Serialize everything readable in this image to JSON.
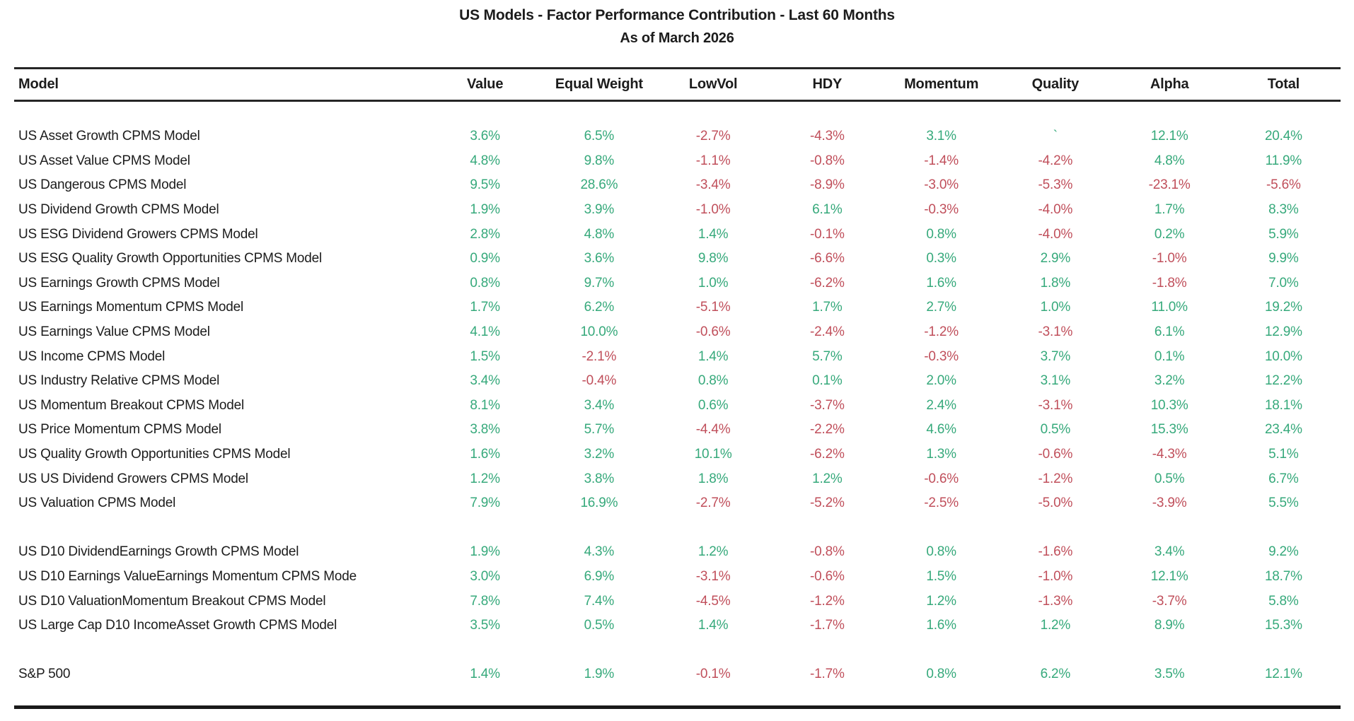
{
  "title": "US Models - Factor Performance Contribution - Last 60 Months",
  "subtitle": "As of March 2026",
  "colors": {
    "positive": "#36A97B",
    "negative": "#C04F5B",
    "text": "#1c1c1c",
    "rule": "#262626"
  },
  "table": {
    "columns": [
      "Model",
      "Value",
      "Equal Weight",
      "LowVol",
      "HDY",
      "Momentum",
      "Quality",
      "Alpha",
      "Total"
    ],
    "groups": [
      {
        "rows": [
          {
            "model": "US Asset Growth CPMS Model",
            "values": [
              "3.6%",
              "6.5%",
              "-2.7%",
              "-4.3%",
              "3.1%",
              "`",
              "12.1%",
              "20.4%"
            ]
          },
          {
            "model": "US Asset Value CPMS Model",
            "values": [
              "4.8%",
              "9.8%",
              "-1.1%",
              "-0.8%",
              "-1.4%",
              "-4.2%",
              "4.8%",
              "11.9%"
            ]
          },
          {
            "model": "US Dangerous CPMS Model",
            "values": [
              "9.5%",
              "28.6%",
              "-3.4%",
              "-8.9%",
              "-3.0%",
              "-5.3%",
              "-23.1%",
              "-5.6%"
            ]
          },
          {
            "model": "US Dividend Growth CPMS Model",
            "values": [
              "1.9%",
              "3.9%",
              "-1.0%",
              "6.1%",
              "-0.3%",
              "-4.0%",
              "1.7%",
              "8.3%"
            ]
          },
          {
            "model": "US ESG Dividend Growers CPMS Model",
            "values": [
              "2.8%",
              "4.8%",
              "1.4%",
              "-0.1%",
              "0.8%",
              "-4.0%",
              "0.2%",
              "5.9%"
            ]
          },
          {
            "model": "US ESG Quality Growth Opportunities CPMS Model",
            "values": [
              "0.9%",
              "3.6%",
              "9.8%",
              "-6.6%",
              "0.3%",
              "2.9%",
              "-1.0%",
              "9.9%"
            ]
          },
          {
            "model": "US Earnings Growth CPMS Model",
            "values": [
              "0.8%",
              "9.7%",
              "1.0%",
              "-6.2%",
              "1.6%",
              "1.8%",
              "-1.8%",
              "7.0%"
            ]
          },
          {
            "model": "US Earnings Momentum CPMS Model",
            "values": [
              "1.7%",
              "6.2%",
              "-5.1%",
              "1.7%",
              "2.7%",
              "1.0%",
              "11.0%",
              "19.2%"
            ]
          },
          {
            "model": "US Earnings Value CPMS Model",
            "values": [
              "4.1%",
              "10.0%",
              "-0.6%",
              "-2.4%",
              "-1.2%",
              "-3.1%",
              "6.1%",
              "12.9%"
            ]
          },
          {
            "model": "US Income CPMS Model",
            "values": [
              "1.5%",
              "-2.1%",
              "1.4%",
              "5.7%",
              "-0.3%",
              "3.7%",
              "0.1%",
              "10.0%"
            ]
          },
          {
            "model": "US Industry Relative CPMS Model",
            "values": [
              "3.4%",
              "-0.4%",
              "0.8%",
              "0.1%",
              "2.0%",
              "3.1%",
              "3.2%",
              "12.2%"
            ]
          },
          {
            "model": "US Momentum Breakout CPMS Model",
            "values": [
              "8.1%",
              "3.4%",
              "0.6%",
              "-3.7%",
              "2.4%",
              "-3.1%",
              "10.3%",
              "18.1%"
            ]
          },
          {
            "model": "US Price Momentum CPMS Model",
            "values": [
              "3.8%",
              "5.7%",
              "-4.4%",
              "-2.2%",
              "4.6%",
              "0.5%",
              "15.3%",
              "23.4%"
            ]
          },
          {
            "model": "US Quality Growth Opportunities CPMS Model",
            "values": [
              "1.6%",
              "3.2%",
              "10.1%",
              "-6.2%",
              "1.3%",
              "-0.6%",
              "-4.3%",
              "5.1%"
            ]
          },
          {
            "model": "US US Dividend Growers CPMS Model",
            "values": [
              "1.2%",
              "3.8%",
              "1.8%",
              "1.2%",
              "-0.6%",
              "-1.2%",
              "0.5%",
              "6.7%"
            ]
          },
          {
            "model": "US Valuation CPMS Model",
            "values": [
              "7.9%",
              "16.9%",
              "-2.7%",
              "-5.2%",
              "-2.5%",
              "-5.0%",
              "-3.9%",
              "5.5%"
            ]
          }
        ]
      },
      {
        "rows": [
          {
            "model": "US D10 DividendEarnings Growth CPMS Model",
            "values": [
              "1.9%",
              "4.3%",
              "1.2%",
              "-0.8%",
              "0.8%",
              "-1.6%",
              "3.4%",
              "9.2%"
            ]
          },
          {
            "model": "US D10 Earnings ValueEarnings Momentum CPMS Mode",
            "values": [
              "3.0%",
              "6.9%",
              "-3.1%",
              "-0.6%",
              "1.5%",
              "-1.0%",
              "12.1%",
              "18.7%"
            ]
          },
          {
            "model": "US D10 ValuationMomentum Breakout CPMS Model",
            "values": [
              "7.8%",
              "7.4%",
              "-4.5%",
              "-1.2%",
              "1.2%",
              "-1.3%",
              "-3.7%",
              "5.8%"
            ]
          },
          {
            "model": "US Large Cap D10 IncomeAsset Growth CPMS Model",
            "values": [
              "3.5%",
              "0.5%",
              "1.4%",
              "-1.7%",
              "1.6%",
              "1.2%",
              "8.9%",
              "15.3%"
            ]
          }
        ]
      },
      {
        "rows": [
          {
            "model": "S&P 500",
            "values": [
              "1.4%",
              "1.9%",
              "-0.1%",
              "-1.7%",
              "0.8%",
              "6.2%",
              "3.5%",
              "12.1%"
            ]
          }
        ]
      }
    ]
  }
}
